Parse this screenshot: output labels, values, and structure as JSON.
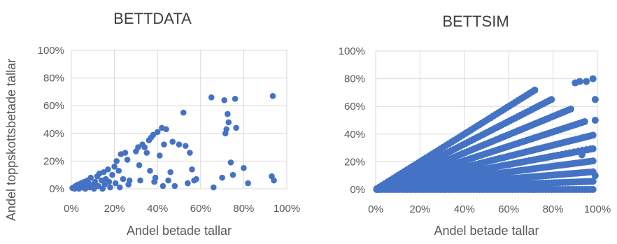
{
  "colors": {
    "marker": "#4472C4",
    "grid": "#d9d9d9",
    "text": "#595959"
  },
  "ylabel": "Andel toppskottsbetade tallar",
  "chart_data": [
    {
      "type": "scatter",
      "title": "BETTDATA",
      "xlabel": "Andel betade tallar",
      "ylabel": "Andel toppskottsbetade tallar",
      "xlim": [
        0,
        1
      ],
      "ylim": [
        0,
        1
      ],
      "xticks": [
        "0%",
        "20%",
        "40%",
        "60%",
        "80%",
        "100%"
      ],
      "yticks": [
        "0%",
        "20%",
        "40%",
        "60%",
        "80%",
        "100%"
      ],
      "grid": true,
      "series": [
        {
          "points": [
            [
              0.005,
              0.005
            ],
            [
              0.01,
              0.01
            ],
            [
              0.015,
              0.0
            ],
            [
              0.02,
              0.02
            ],
            [
              0.025,
              0.01
            ],
            [
              0.03,
              0.03
            ],
            [
              0.035,
              0.0
            ],
            [
              0.04,
              0.02
            ],
            [
              0.045,
              0.04
            ],
            [
              0.05,
              0.01
            ],
            [
              0.055,
              0.03
            ],
            [
              0.06,
              0.05
            ],
            [
              0.065,
              0.0
            ],
            [
              0.07,
              0.02
            ],
            [
              0.075,
              0.06
            ],
            [
              0.08,
              0.04
            ],
            [
              0.085,
              0.01
            ],
            [
              0.09,
              0.08
            ],
            [
              0.1,
              0.03
            ],
            [
              0.105,
              0.0
            ],
            [
              0.11,
              0.05
            ],
            [
              0.12,
              0.09
            ],
            [
              0.125,
              0.02
            ],
            [
              0.13,
              0.11
            ],
            [
              0.14,
              0.06
            ],
            [
              0.145,
              0.0
            ],
            [
              0.15,
              0.12
            ],
            [
              0.155,
              0.03
            ],
            [
              0.16,
              0.07
            ],
            [
              0.17,
              0.14
            ],
            [
              0.175,
              0.05
            ],
            [
              0.18,
              0.01
            ],
            [
              0.19,
              0.1
            ],
            [
              0.2,
              0.16
            ],
            [
              0.205,
              0.04
            ],
            [
              0.21,
              0.2
            ],
            [
              0.22,
              0.13
            ],
            [
              0.225,
              0.01
            ],
            [
              0.23,
              0.25
            ],
            [
              0.24,
              0.07
            ],
            [
              0.25,
              0.26
            ],
            [
              0.26,
              0.21
            ],
            [
              0.265,
              0.03
            ],
            [
              0.27,
              0.06
            ],
            [
              0.3,
              0.27
            ],
            [
              0.31,
              0.3
            ],
            [
              0.315,
              0.17
            ],
            [
              0.32,
              0.06
            ],
            [
              0.33,
              0.32
            ],
            [
              0.34,
              0.3
            ],
            [
              0.35,
              0.26
            ],
            [
              0.36,
              0.35
            ],
            [
              0.365,
              0.13
            ],
            [
              0.37,
              0.37
            ],
            [
              0.38,
              0.39
            ],
            [
              0.385,
              0.05
            ],
            [
              0.39,
              0.08
            ],
            [
              0.4,
              0.41
            ],
            [
              0.41,
              0.24
            ],
            [
              0.42,
              0.44
            ],
            [
              0.425,
              0.02
            ],
            [
              0.43,
              0.32
            ],
            [
              0.44,
              0.43
            ],
            [
              0.45,
              0.06
            ],
            [
              0.46,
              0.12
            ],
            [
              0.47,
              0.34
            ],
            [
              0.48,
              0.02
            ],
            [
              0.5,
              0.32
            ],
            [
              0.52,
              0.55
            ],
            [
              0.53,
              0.31
            ],
            [
              0.54,
              0.04
            ],
            [
              0.55,
              0.26
            ],
            [
              0.56,
              0.14
            ],
            [
              0.57,
              0.06
            ],
            [
              0.58,
              0.07
            ],
            [
              0.65,
              0.66
            ],
            [
              0.66,
              0.01
            ],
            [
              0.7,
              0.08
            ],
            [
              0.71,
              0.64
            ],
            [
              0.715,
              0.4
            ],
            [
              0.72,
              0.43
            ],
            [
              0.725,
              0.54
            ],
            [
              0.73,
              0.48
            ],
            [
              0.74,
              0.19
            ],
            [
              0.75,
              0.1
            ],
            [
              0.76,
              0.65
            ],
            [
              0.765,
              0.44
            ],
            [
              0.8,
              0.15
            ],
            [
              0.82,
              0.04
            ],
            [
              0.93,
              0.09
            ],
            [
              0.935,
              0.67
            ],
            [
              0.94,
              0.06
            ]
          ]
        }
      ]
    },
    {
      "type": "scatter",
      "title": "BETTSIM",
      "xlabel": "Andel betade tallar",
      "xlim": [
        0,
        1
      ],
      "ylim": [
        0,
        1
      ],
      "xticks": [
        "0%",
        "20%",
        "40%",
        "60%",
        "80%",
        "100%"
      ],
      "yticks": [
        "0%",
        "20%",
        "40%",
        "60%",
        "80%",
        "100%"
      ],
      "grid": true,
      "trendline": {
        "style": "dotted",
        "x": [
          0.0,
          0.98
        ],
        "y": [
          0.0,
          0.32
        ]
      },
      "series": [
        {
          "rays": [
            1.0,
            0.82,
            0.66,
            0.52,
            0.4,
            0.3,
            0.21,
            0.13,
            0.06,
            0.0
          ],
          "ray_x_max": [
            0.72,
            0.8,
            0.88,
            0.95,
            0.98,
            0.98,
            0.98,
            0.98,
            0.98,
            0.98
          ],
          "edge_points": [
            [
              0.98,
              0.8
            ],
            [
              0.95,
              0.78
            ],
            [
              0.92,
              0.78
            ],
            [
              0.99,
              0.65
            ],
            [
              0.99,
              0.5
            ],
            [
              0.99,
              0.1
            ],
            [
              0.9,
              0.77
            ],
            [
              0.93,
              0.25
            ]
          ]
        }
      ]
    }
  ]
}
